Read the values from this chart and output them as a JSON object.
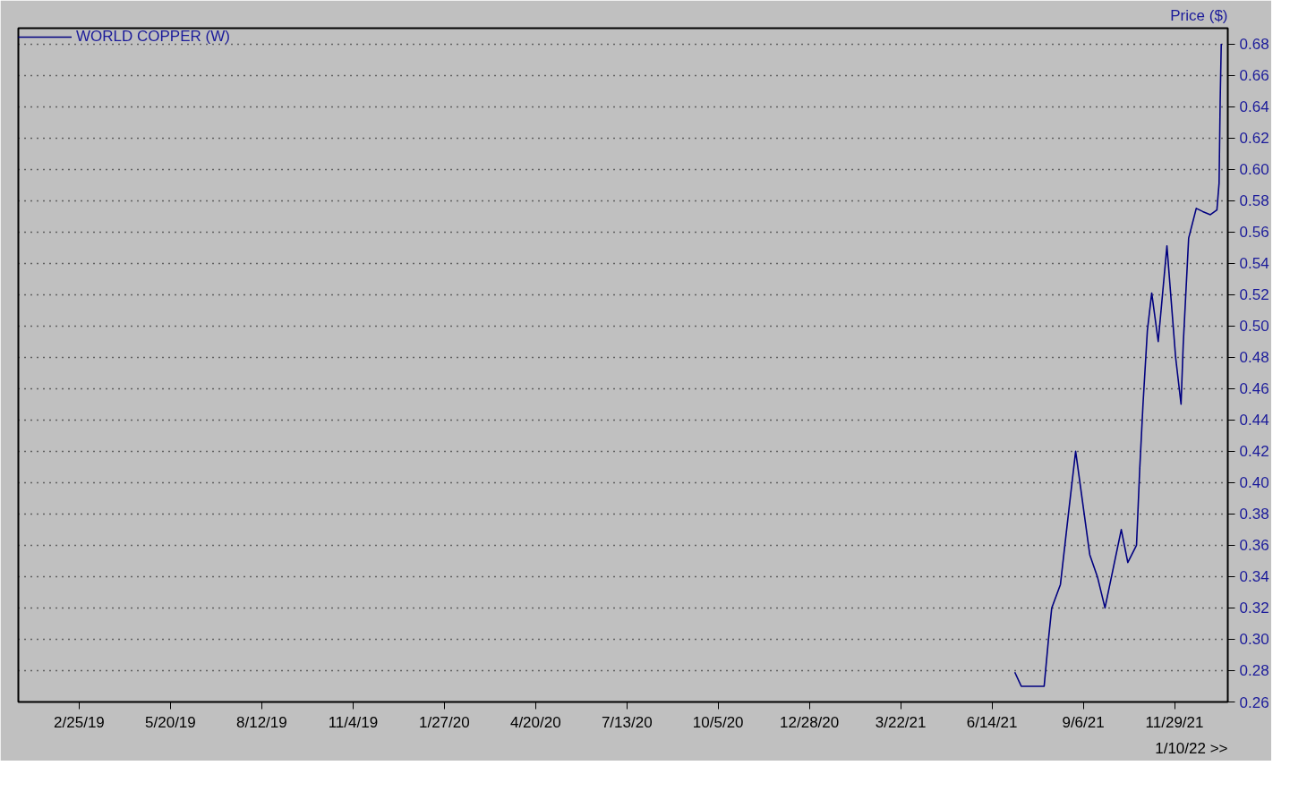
{
  "chart_data": {
    "type": "line",
    "x": [
      "2021-07-05",
      "2021-07-11",
      "2021-08-01",
      "2021-08-05",
      "2021-08-08",
      "2021-08-16",
      "2021-08-24",
      "2021-08-30",
      "2021-09-12",
      "2021-09-19",
      "2021-09-26",
      "2021-10-11",
      "2021-10-17",
      "2021-10-25",
      "2021-10-28",
      "2021-10-31",
      "2021-11-04",
      "2021-11-08",
      "2021-11-14",
      "2021-11-22",
      "2021-11-30",
      "2021-12-05",
      "2021-12-07",
      "2021-12-12",
      "2021-12-19",
      "2021-12-25",
      "2022-01-01",
      "2022-01-07",
      "2022-01-09",
      "2022-01-10",
      "2022-01-11"
    ],
    "series": [
      {
        "name": "WORLD COPPER (W)",
        "color": "#000080",
        "values": [
          0.279,
          0.27,
          0.27,
          0.3,
          0.32,
          0.335,
          0.384,
          0.42,
          0.354,
          0.34,
          0.32,
          0.37,
          0.349,
          0.36,
          0.409,
          0.45,
          0.497,
          0.521,
          0.49,
          0.551,
          0.48,
          0.45,
          0.488,
          0.556,
          0.575,
          0.573,
          0.571,
          0.574,
          0.591,
          0.643,
          0.68
        ]
      }
    ],
    "ylabel": "Price ($)",
    "xlim": [
      "2018-12-31",
      "2022-01-17"
    ],
    "xticks": [
      {
        "value": "2019-02-25",
        "label": "2/25/19"
      },
      {
        "value": "2019-05-20",
        "label": "5/20/19"
      },
      {
        "value": "2019-08-12",
        "label": "8/12/19"
      },
      {
        "value": "2019-11-04",
        "label": "11/4/19"
      },
      {
        "value": "2020-01-27",
        "label": "1/27/20"
      },
      {
        "value": "2020-04-20",
        "label": "4/20/20"
      },
      {
        "value": "2020-07-13",
        "label": "7/13/20"
      },
      {
        "value": "2020-10-05",
        "label": "10/5/20"
      },
      {
        "value": "2020-12-28",
        "label": "12/28/20"
      },
      {
        "value": "2021-03-22",
        "label": "3/22/21"
      },
      {
        "value": "2021-06-14",
        "label": "6/14/21"
      },
      {
        "value": "2021-09-06",
        "label": "9/6/21"
      },
      {
        "value": "2021-11-29",
        "label": "11/29/21"
      }
    ],
    "ylim": [
      0.26,
      0.69
    ],
    "yticks": [
      {
        "value": 0.26,
        "label": "0.26"
      },
      {
        "value": 0.28,
        "label": "0.28"
      },
      {
        "value": 0.3,
        "label": "0.30"
      },
      {
        "value": 0.32,
        "label": "0.32"
      },
      {
        "value": 0.34,
        "label": "0.34"
      },
      {
        "value": 0.36,
        "label": "0.36"
      },
      {
        "value": 0.38,
        "label": "0.38"
      },
      {
        "value": 0.4,
        "label": "0.40"
      },
      {
        "value": 0.42,
        "label": "0.42"
      },
      {
        "value": 0.44,
        "label": "0.44"
      },
      {
        "value": 0.46,
        "label": "0.46"
      },
      {
        "value": 0.48,
        "label": "0.48"
      },
      {
        "value": 0.5,
        "label": "0.50"
      },
      {
        "value": 0.52,
        "label": "0.52"
      },
      {
        "value": 0.54,
        "label": "0.54"
      },
      {
        "value": 0.56,
        "label": "0.56"
      },
      {
        "value": 0.58,
        "label": "0.58"
      },
      {
        "value": 0.6,
        "label": "0.60"
      },
      {
        "value": 0.62,
        "label": "0.62"
      },
      {
        "value": 0.64,
        "label": "0.64"
      },
      {
        "value": 0.66,
        "label": "0.66"
      },
      {
        "value": 0.68,
        "label": "0.68"
      }
    ],
    "grid": "y",
    "legend": "top left",
    "line_style": "solid",
    "annotations": [
      "1/10/22 >>"
    ]
  }
}
